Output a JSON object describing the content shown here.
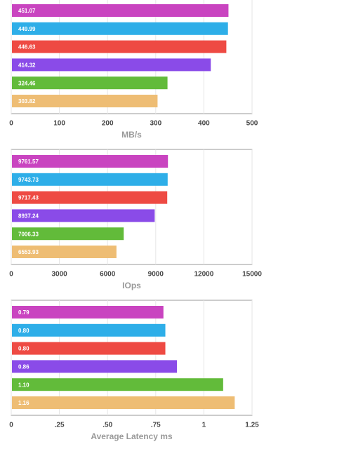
{
  "chart_data": [
    {
      "type": "hbar",
      "xlabel": "MB/s",
      "values": [
        451.07,
        449.99,
        446.63,
        414.32,
        324.46,
        303.82
      ],
      "colors": [
        "#c944c0",
        "#2eaee8",
        "#ee4a43",
        "#8a4be8",
        "#62bb3a",
        "#eebd74"
      ],
      "xlim": [
        0,
        500
      ],
      "xticks": [
        0,
        100,
        200,
        300,
        400,
        500
      ],
      "grid": true
    },
    {
      "type": "hbar",
      "xlabel": "IOps",
      "values": [
        9761.57,
        9743.73,
        9717.43,
        8937.24,
        7006.33,
        6553.93
      ],
      "colors": [
        "#c944c0",
        "#2eaee8",
        "#ee4a43",
        "#8a4be8",
        "#62bb3a",
        "#eebd74"
      ],
      "xlim": [
        0,
        15000
      ],
      "xticks": [
        0,
        3000,
        6000,
        9000,
        12000,
        15000
      ],
      "grid": true
    },
    {
      "type": "hbar",
      "xlabel": "Average Latency ms",
      "values": [
        0.79,
        0.8,
        0.8,
        0.86,
        1.1,
        1.16
      ],
      "value_labels": [
        "0.79",
        "0.80",
        "0.80",
        "0.86",
        "1.10",
        "1.16"
      ],
      "colors": [
        "#c944c0",
        "#2eaee8",
        "#ee4a43",
        "#8a4be8",
        "#62bb3a",
        "#eebd74"
      ],
      "xlim": [
        0,
        1.25
      ],
      "xticks": [
        0,
        {
          "value": 0.25,
          "label": ".25"
        },
        {
          "value": 0.5,
          "label": ".50"
        },
        {
          "value": 0.75,
          "label": ".75"
        },
        1,
        {
          "value": 1.25,
          "label": "1.25"
        }
      ],
      "grid": true
    }
  ]
}
